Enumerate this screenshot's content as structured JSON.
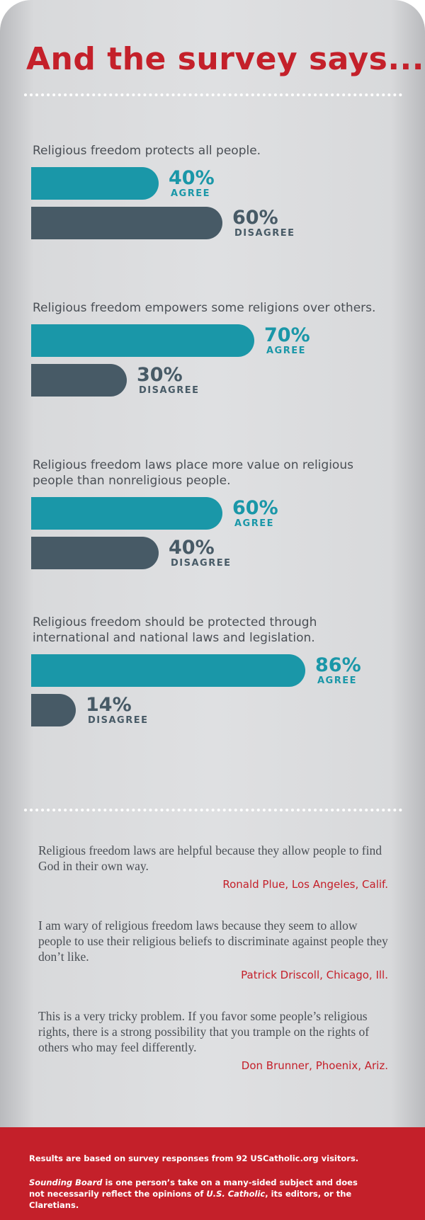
{
  "title": "And the survey says...",
  "chart_data": [
    {
      "type": "bar",
      "title": "Religious freedom protects all people.",
      "categories": [
        "AGREE",
        "DISAGREE"
      ],
      "values": [
        40,
        60
      ],
      "value_labels": [
        "40%",
        "60%"
      ],
      "colors": [
        "#1a97a8",
        "#475a66"
      ]
    },
    {
      "type": "bar",
      "title": "Religious freedom empowers some religions over others.",
      "categories": [
        "AGREE",
        "DISAGREE"
      ],
      "values": [
        70,
        30
      ],
      "value_labels": [
        "70%",
        "30%"
      ],
      "colors": [
        "#1a97a8",
        "#475a66"
      ]
    },
    {
      "type": "bar",
      "title": "Religious freedom laws place more value on religious people than nonreligious people.",
      "categories": [
        "AGREE",
        "DISAGREE"
      ],
      "values": [
        60,
        40
      ],
      "value_labels": [
        "60%",
        "40%"
      ],
      "colors": [
        "#1a97a8",
        "#475a66"
      ]
    },
    {
      "type": "bar",
      "title": "Religious freedom should be protected through international and national laws and legislation.",
      "categories": [
        "AGREE",
        "DISAGREE"
      ],
      "values": [
        86,
        14
      ],
      "value_labels": [
        "86%",
        "14%"
      ],
      "colors": [
        "#1a97a8",
        "#475a66"
      ]
    }
  ],
  "quotes": [
    {
      "text": "Religious freedom laws are helpful because they allow people to find God in their own way.",
      "author": "Ronald Plue, Los Angeles, Calif."
    },
    {
      "text": "I am wary of religious freedom laws because they seem to allow people to use their religious beliefs to discriminate against people they don’t like.",
      "author": "Patrick Driscoll, Chicago, Ill."
    },
    {
      "text": "This is a very tricky problem. If you favor some people’s religious rights, there is a strong possibility that you trample on the rights of others who may feel differently.",
      "author": "Don Brunner,  Phoenix, Ariz."
    }
  ],
  "footer": {
    "line1": "Results are based on survey responses from 92 USCatholic.org visitors.",
    "note": [
      "Sounding Board",
      " is one person’s take on a many-sided subject and does not necessarily reflect the opinions of ",
      "U.S. Catholic",
      ", its editors, or the Claretians."
    ]
  }
}
